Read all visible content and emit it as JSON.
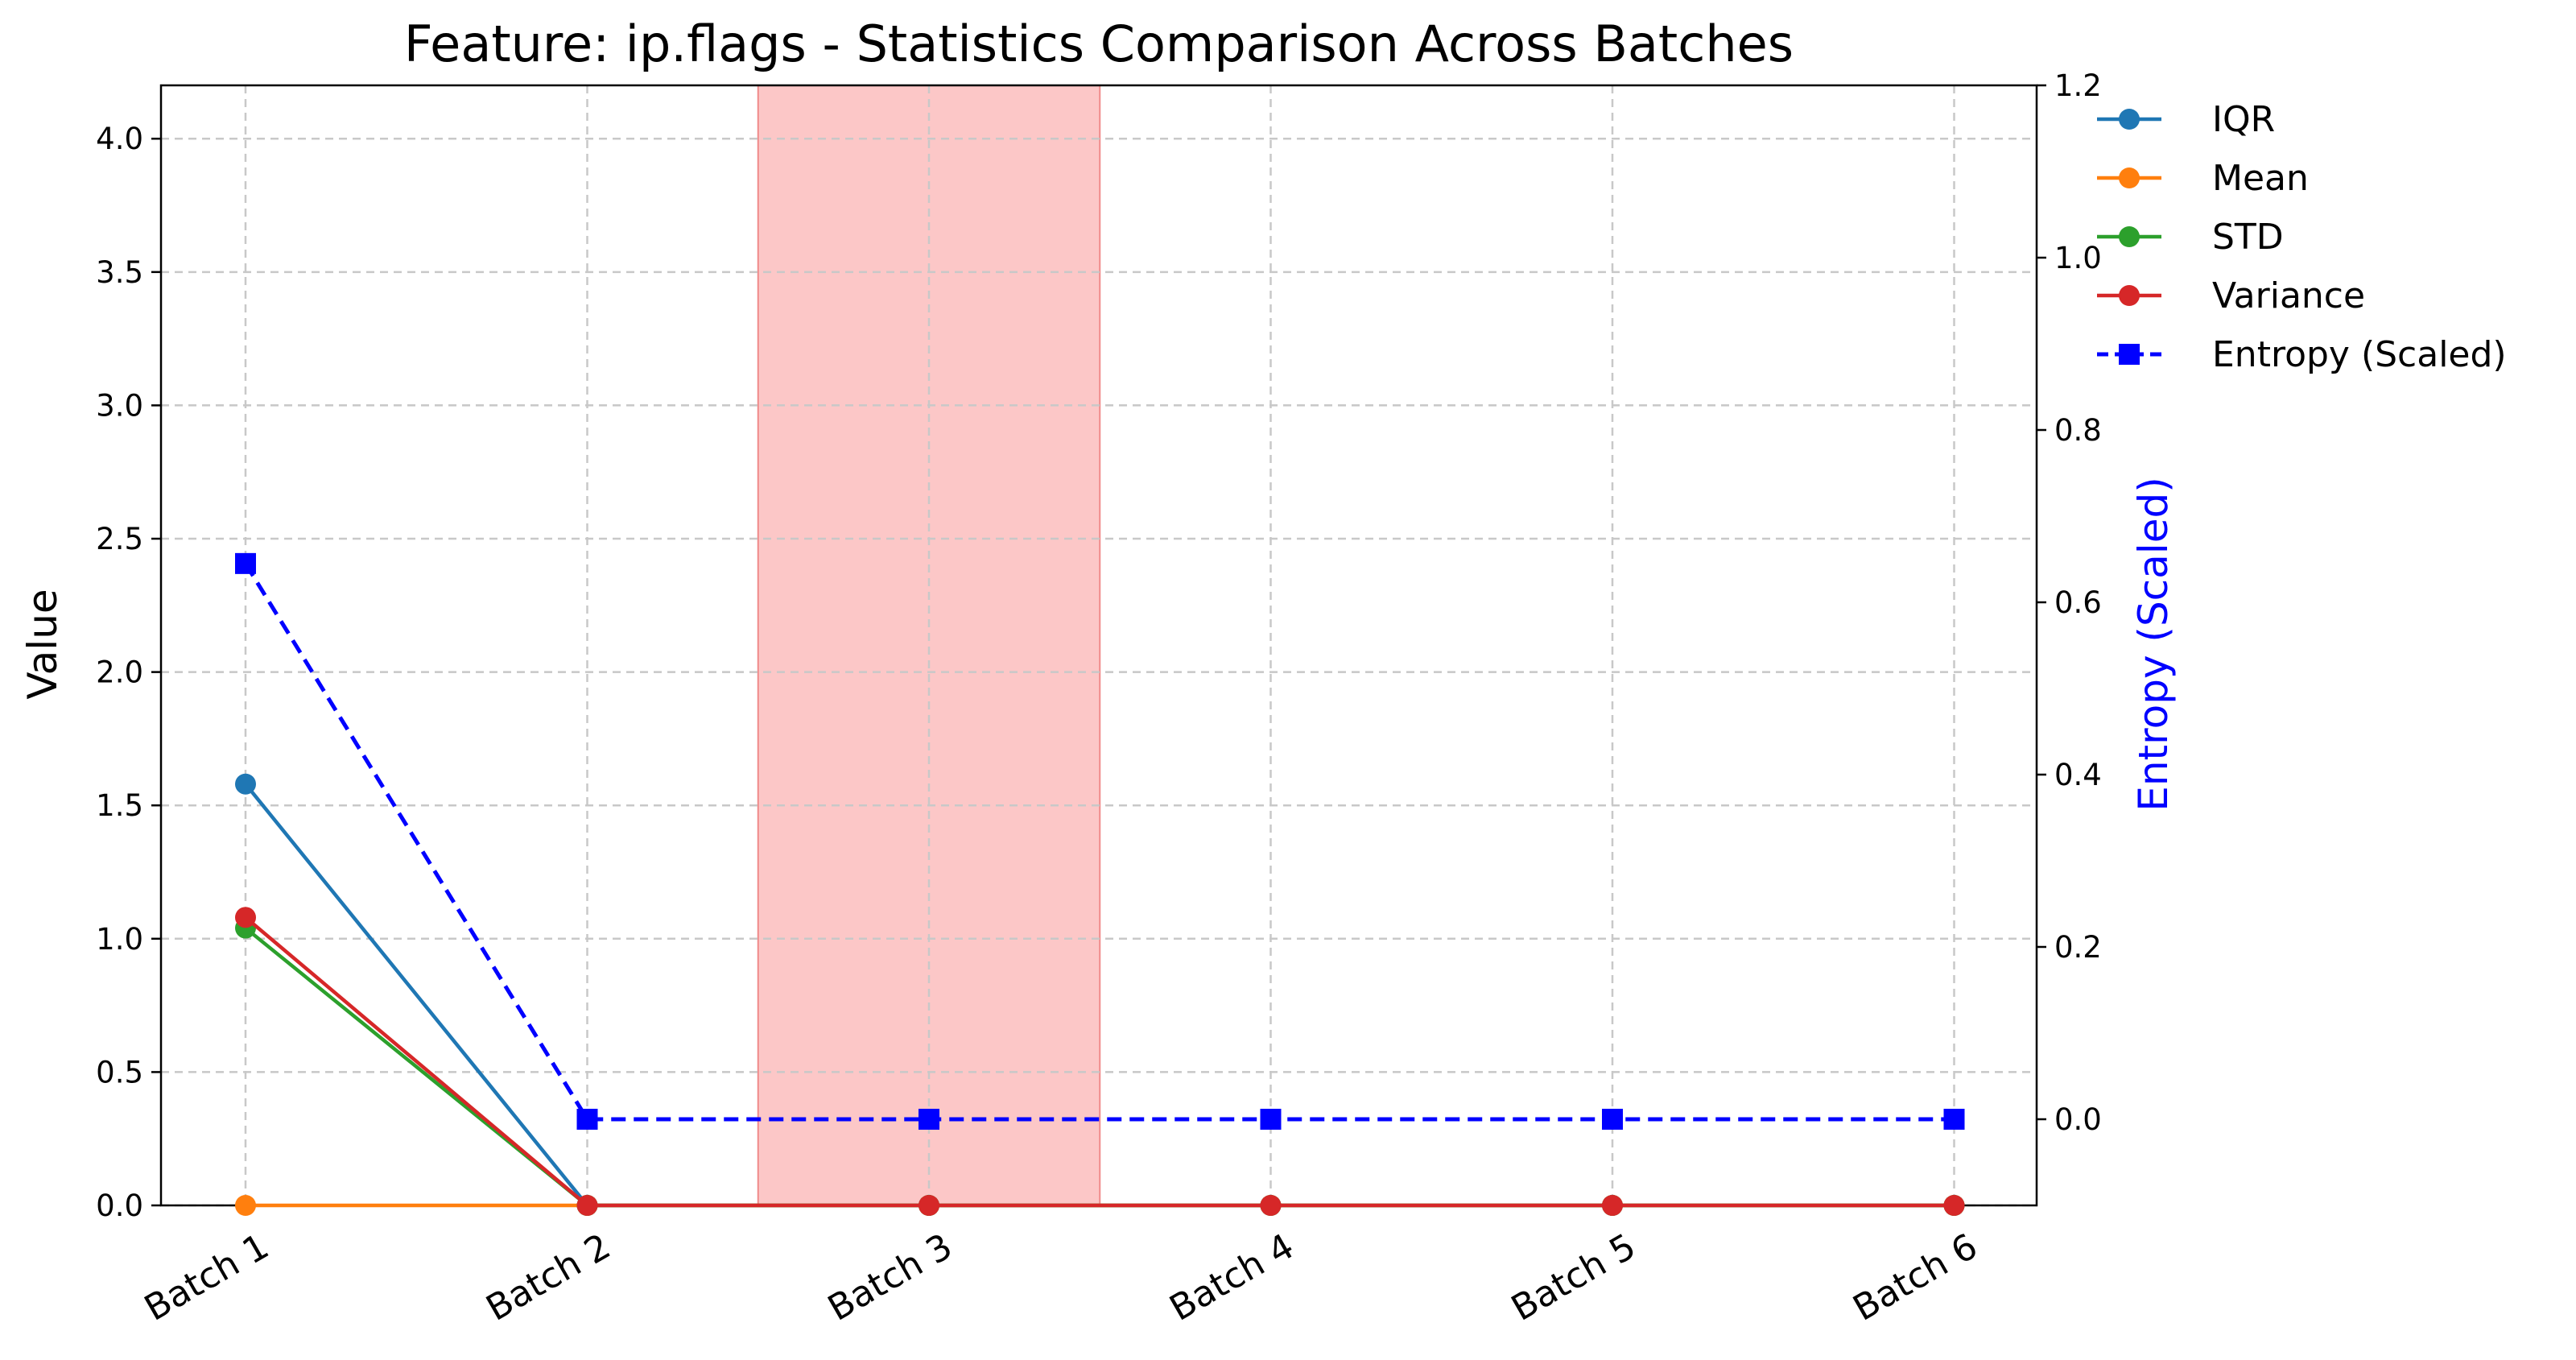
{
  "chart_data": {
    "type": "line",
    "title": "Feature: ip.flags - Statistics Comparison Across Batches",
    "xlabel": "",
    "ylabel": "Value",
    "y2label": "Entropy (Scaled)",
    "categories": [
      "Batch 1",
      "Batch 2",
      "Batch 3",
      "Batch 4",
      "Batch 5",
      "Batch 6"
    ],
    "ylim": [
      0,
      4.2
    ],
    "yticks": [
      0.0,
      0.5,
      1.0,
      1.5,
      2.0,
      2.5,
      3.0,
      3.5,
      4.0
    ],
    "ytick_labels": [
      "0.0",
      "0.5",
      "1.0",
      "1.5",
      "2.0",
      "2.5",
      "3.0",
      "3.5",
      "4.0"
    ],
    "y2lim": [
      -0.1,
      1.2
    ],
    "y2ticks": [
      0.0,
      0.2,
      0.4,
      0.6,
      0.8,
      1.0,
      1.2
    ],
    "y2tick_labels": [
      "0.0",
      "0.2",
      "0.4",
      "0.6",
      "0.8",
      "1.0",
      "1.2"
    ],
    "grid": true,
    "legend_position": "upper-right-outside",
    "highlight_span": {
      "from": "Batch 3",
      "color": "#fbb4b4"
    },
    "series": [
      {
        "name": "IQR",
        "axis": "left",
        "color": "#1f77b4",
        "marker": "circle",
        "linestyle": "solid",
        "values": [
          1.58,
          0,
          0,
          0,
          0,
          0
        ]
      },
      {
        "name": "Mean",
        "axis": "left",
        "color": "#ff7f0e",
        "marker": "circle",
        "linestyle": "solid",
        "values": [
          0,
          0,
          0,
          0,
          0,
          0
        ]
      },
      {
        "name": "STD",
        "axis": "left",
        "color": "#2ca02c",
        "marker": "circle",
        "linestyle": "solid",
        "values": [
          1.04,
          0,
          0,
          0,
          0,
          0
        ]
      },
      {
        "name": "Variance",
        "axis": "left",
        "color": "#d62728",
        "marker": "circle",
        "linestyle": "solid",
        "values": [
          1.08,
          0,
          0,
          0,
          0,
          0
        ]
      },
      {
        "name": "Entropy (Scaled)",
        "axis": "right",
        "color": "#0000ff",
        "marker": "square",
        "linestyle": "dashed",
        "values": [
          0.645,
          0,
          0,
          0,
          0,
          0
        ]
      }
    ]
  }
}
